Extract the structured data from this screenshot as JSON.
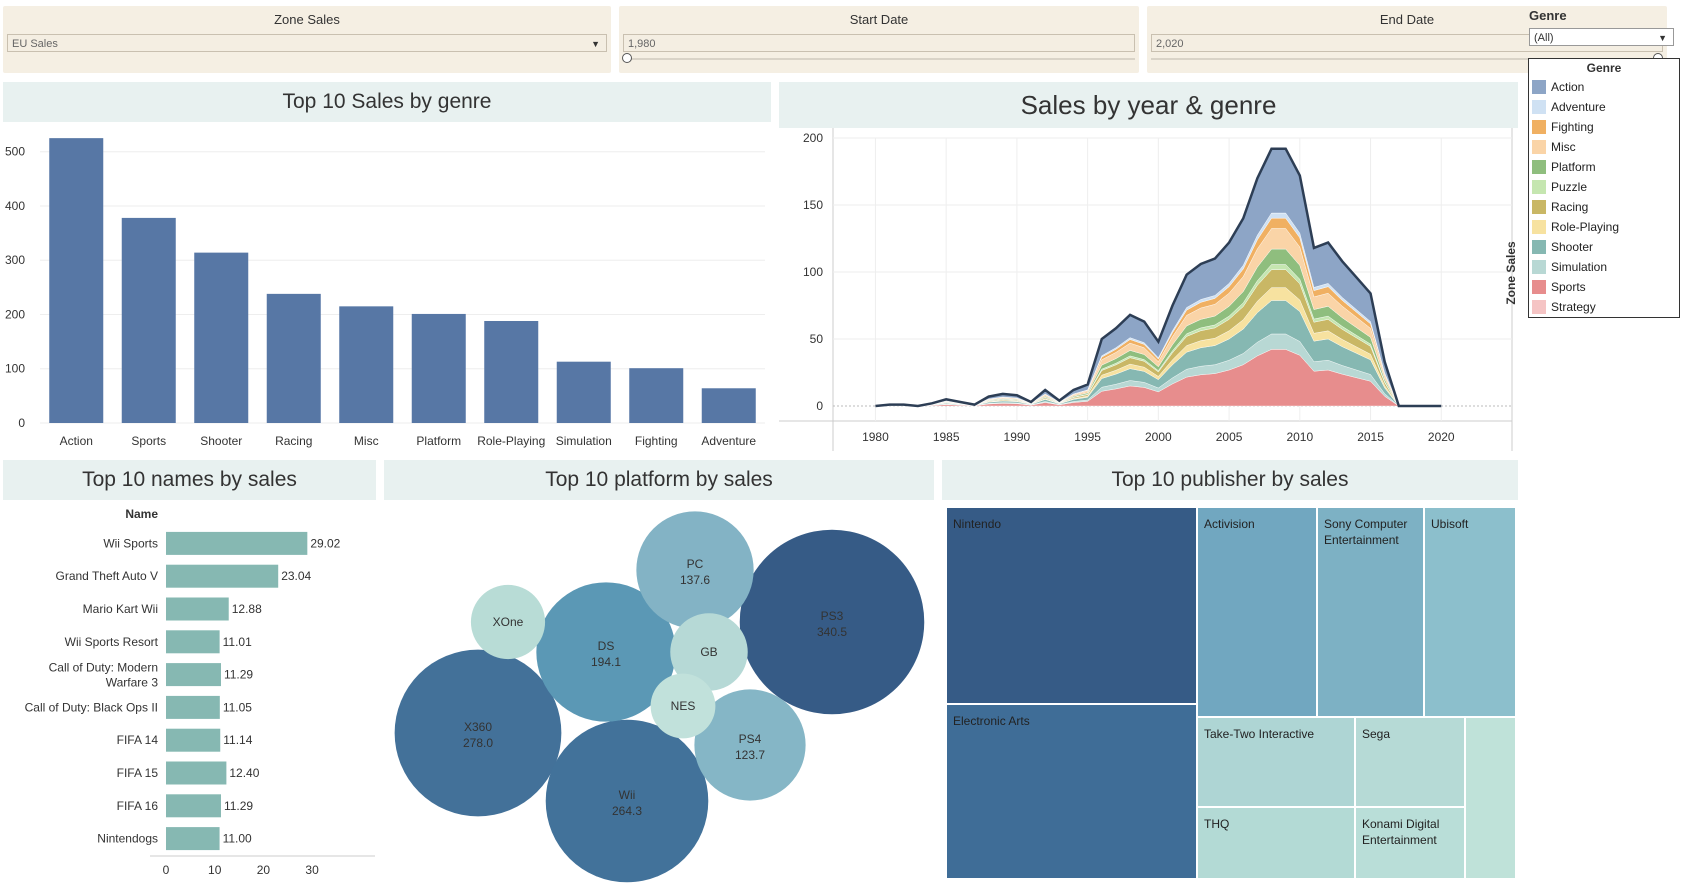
{
  "filters": {
    "zone": {
      "title": "Zone Sales",
      "value": "EU Sales"
    },
    "start": {
      "title": "Start Date",
      "value": "1,980"
    },
    "end": {
      "title": "End Date",
      "value": "2,020"
    },
    "genre": {
      "title": "Genre",
      "value": "(All)"
    }
  },
  "legend": {
    "title": "Genre",
    "items": [
      {
        "label": "Action",
        "color": "#8da5c6"
      },
      {
        "label": "Adventure",
        "color": "#cfe1f3"
      },
      {
        "label": "Fighting",
        "color": "#f0b062"
      },
      {
        "label": "Misc",
        "color": "#fad4a7"
      },
      {
        "label": "Platform",
        "color": "#8fbe7e"
      },
      {
        "label": "Puzzle",
        "color": "#c5e6b0"
      },
      {
        "label": "Racing",
        "color": "#c9b765"
      },
      {
        "label": "Role-Playing",
        "color": "#f7e2a0"
      },
      {
        "label": "Shooter",
        "color": "#86b8b2"
      },
      {
        "label": "Simulation",
        "color": "#b8d8d4"
      },
      {
        "label": "Sports",
        "color": "#e78d8d"
      },
      {
        "label": "Strategy",
        "color": "#f5c4c4"
      }
    ]
  },
  "panels": {
    "genre_bar": "Top 10 Sales by genre",
    "year_area": "Sales by year & genre",
    "names": "Top 10 names by sales",
    "platform": "Top 10 platform by sales",
    "publisher": "Top 10 publisher by sales"
  },
  "chart_data": [
    {
      "type": "bar",
      "title": "Top 10 Sales by genre",
      "categories": [
        "Action",
        "Sports",
        "Shooter",
        "Racing",
        "Misc",
        "Platform",
        "Role-Playing",
        "Simulation",
        "Fighting",
        "Adventure"
      ],
      "values": [
        525,
        378,
        314,
        238,
        215,
        201,
        188,
        113,
        101,
        64
      ],
      "yticks": [
        0,
        100,
        200,
        300,
        400,
        500
      ],
      "ylim": [
        0,
        540
      ],
      "color": "#5777a5"
    },
    {
      "type": "area",
      "title": "Sales by year & genre",
      "ylabel_right": "Zone Sales",
      "x": [
        1980,
        1981,
        1982,
        1983,
        1984,
        1985,
        1986,
        1987,
        1988,
        1989,
        1990,
        1991,
        1992,
        1993,
        1994,
        1995,
        1996,
        1997,
        1998,
        1999,
        2000,
        2001,
        2002,
        2003,
        2004,
        2005,
        2006,
        2007,
        2008,
        2009,
        2010,
        2011,
        2012,
        2013,
        2014,
        2015,
        2016,
        2017,
        2018,
        2019,
        2020
      ],
      "total": [
        0,
        1,
        1,
        0,
        2,
        5,
        3,
        1,
        7,
        9,
        8,
        3,
        12,
        4,
        12,
        16,
        50,
        58,
        68,
        63,
        48,
        75,
        98,
        106,
        110,
        122,
        140,
        170,
        192,
        192,
        172,
        118,
        122,
        108,
        96,
        84,
        33,
        0,
        0,
        0,
        0
      ],
      "stack_order": [
        "Sports",
        "Simulation",
        "Shooter",
        "Role-Playing",
        "Racing",
        "Puzzle",
        "Platform",
        "Misc",
        "Fighting",
        "Adventure",
        "Action"
      ],
      "share_pct": {
        "Sports": 22,
        "Simulation": 6,
        "Shooter": 13,
        "Role-Playing": 5,
        "Racing": 7,
        "Puzzle": 2,
        "Platform": 6,
        "Misc": 8,
        "Fighting": 4,
        "Adventure": 2,
        "Action": 25
      },
      "xticks": [
        1980,
        1985,
        1990,
        1995,
        2000,
        2005,
        2010,
        2015,
        2020
      ],
      "yticks": [
        0,
        50,
        100,
        150,
        200
      ],
      "ylim": [
        0,
        200
      ]
    },
    {
      "type": "bar",
      "orientation": "horizontal",
      "title": "Top 10 names by sales",
      "header": "Name",
      "categories": [
        "Wii Sports",
        "Grand Theft Auto V",
        "Mario Kart Wii",
        "Wii Sports Resort",
        "Call of Duty: Modern|Warfare 3",
        "Call of Duty: Black Ops II",
        "FIFA 14",
        "FIFA 15",
        "FIFA 16",
        "Nintendogs"
      ],
      "values": [
        29.02,
        23.04,
        12.88,
        11.01,
        11.29,
        11.05,
        11.14,
        12.4,
        11.29,
        11.0
      ],
      "labels": [
        "29.02",
        "23.04",
        "12.88",
        "11.01",
        "11.29",
        "11.05",
        "11.14",
        "12.40",
        "11.29",
        "11.00"
      ],
      "xticks": [
        0,
        10,
        20,
        30
      ],
      "color": "#86b8b2"
    },
    {
      "type": "bubble",
      "title": "Top 10 platform by sales",
      "items": [
        {
          "name": "PS3",
          "value": "340.5",
          "v": 340.5,
          "color": "#365b86"
        },
        {
          "name": "X360",
          "value": "278.0",
          "v": 278.0,
          "color": "#437199"
        },
        {
          "name": "Wii",
          "value": "264.3",
          "v": 264.3,
          "color": "#42729a"
        },
        {
          "name": "DS",
          "value": "194.1",
          "v": 194.1,
          "color": "#5b98b5"
        },
        {
          "name": "PC",
          "value": "137.6",
          "v": 137.6,
          "color": "#83b3c5"
        },
        {
          "name": "PS4",
          "value": "123.7",
          "v": 123.7,
          "color": "#85b6c6"
        },
        {
          "name": "GB",
          "value": "",
          "v": 60,
          "color": "#b6d9d6"
        },
        {
          "name": "XOne",
          "value": "",
          "v": 55,
          "color": "#b8dcd6"
        },
        {
          "name": "NES",
          "value": "",
          "v": 42,
          "color": "#c1e1db"
        }
      ]
    },
    {
      "type": "treemap",
      "title": "Top 10 publisher by sales",
      "items": [
        {
          "name": "Nintendo",
          "color": "#365b86"
        },
        {
          "name": "Electronic Arts",
          "color": "#3f6d97"
        },
        {
          "name": "Activision",
          "color": "#71a7c0"
        },
        {
          "name": "Sony Computer Entertainment",
          "color": "#7db1c4"
        },
        {
          "name": "Ubisoft",
          "color": "#8cbfcc"
        },
        {
          "name": "Take-Two Interactive",
          "color": "#aed5d4"
        },
        {
          "name": "Sega",
          "color": "#b6dad6"
        },
        {
          "name": "THQ",
          "color": "#b3dad5"
        },
        {
          "name": "Konami Digital Entertainment",
          "color": "#b9ded8"
        },
        {
          "name": "",
          "color": "#bfe2d9"
        }
      ]
    }
  ]
}
